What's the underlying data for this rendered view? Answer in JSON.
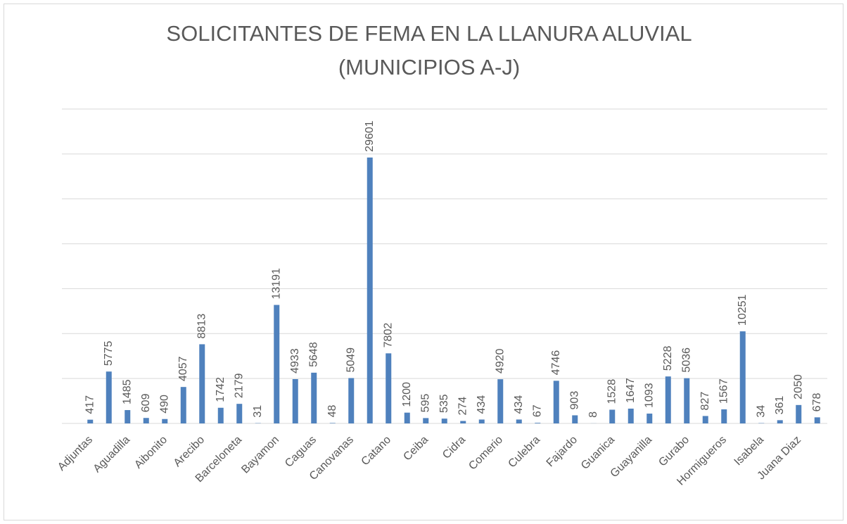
{
  "chart_data": {
    "type": "bar",
    "title": [
      "SOLICITANTES DE FEMA EN LA LLANURA ALUVIAL",
      "(MUNICIPIOS A-J)"
    ],
    "categories": [
      "Adjuntas",
      null,
      "Aguadilla",
      null,
      "Aibonito",
      null,
      "Arecibo",
      null,
      "Barceloneta",
      null,
      "Bayamon",
      null,
      "Caguas",
      null,
      "Canovanas",
      null,
      "Catano",
      null,
      "Ceiba",
      null,
      "Cidra",
      null,
      "Comerio",
      null,
      "Culebra",
      null,
      "Fajardo",
      null,
      "Guanica",
      null,
      "Guayanilla",
      null,
      "Gurabo",
      null,
      "Hormigueros",
      null,
      "Isabela",
      null,
      "Juana Diaz",
      null
    ],
    "values": [
      417,
      5775,
      1485,
      609,
      490,
      4057,
      8813,
      1742,
      2179,
      31,
      13191,
      4933,
      5648,
      48,
      5049,
      29601,
      7802,
      1200,
      595,
      535,
      274,
      434,
      4920,
      434,
      67,
      4746,
      903,
      8,
      1528,
      1647,
      1093,
      5228,
      5036,
      827,
      1567,
      10251,
      34,
      361,
      2050,
      678
    ],
    "color": "#4f81bd",
    "ylim": [
      0,
      35000
    ],
    "yticks": [
      0,
      5000,
      10000,
      15000,
      20000,
      25000,
      30000,
      35000
    ],
    "grid": true
  }
}
